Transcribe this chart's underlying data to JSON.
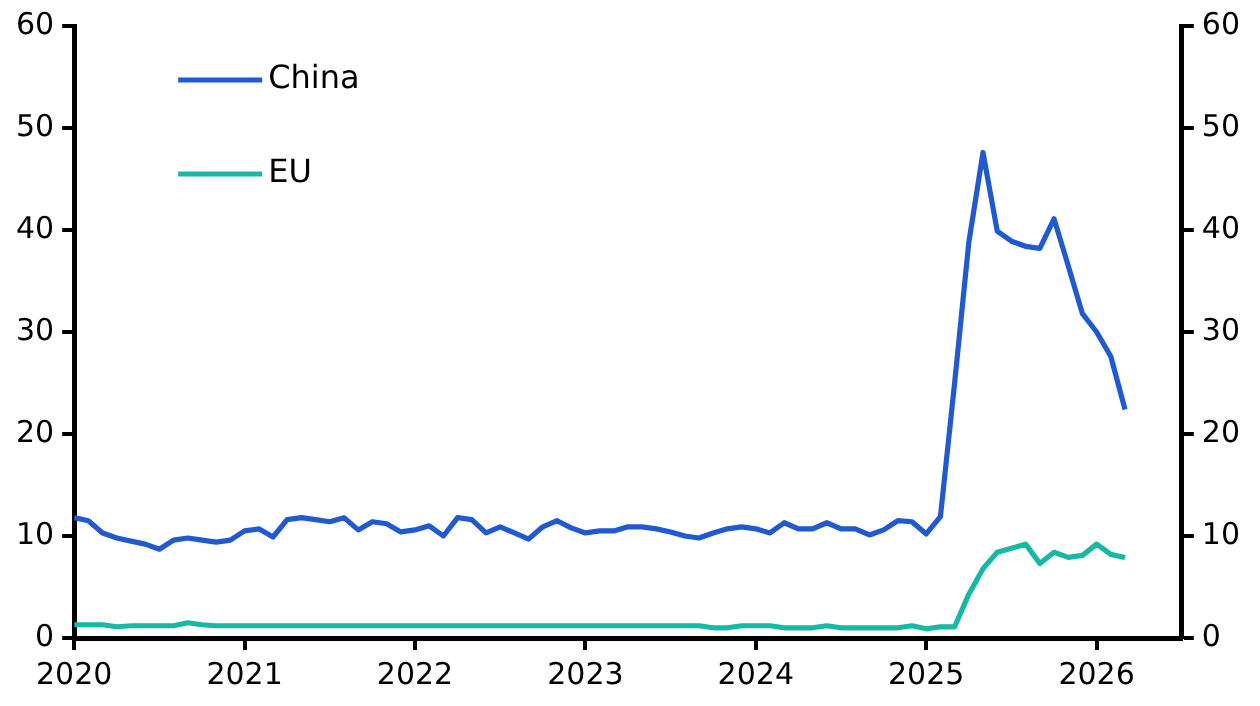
{
  "chart_data": {
    "type": "line",
    "x": [
      "2020-01",
      "2020-02",
      "2020-03",
      "2020-04",
      "2020-05",
      "2020-06",
      "2020-07",
      "2020-08",
      "2020-09",
      "2020-10",
      "2020-11",
      "2020-12",
      "2021-01",
      "2021-02",
      "2021-03",
      "2021-04",
      "2021-05",
      "2021-06",
      "2021-07",
      "2021-08",
      "2021-09",
      "2021-10",
      "2021-11",
      "2021-12",
      "2022-01",
      "2022-02",
      "2022-03",
      "2022-04",
      "2022-05",
      "2022-06",
      "2022-07",
      "2022-08",
      "2022-09",
      "2022-10",
      "2022-11",
      "2022-12",
      "2023-01",
      "2023-02",
      "2023-03",
      "2023-04",
      "2023-05",
      "2023-06",
      "2023-07",
      "2023-08",
      "2023-09",
      "2023-10",
      "2023-11",
      "2023-12",
      "2024-01",
      "2024-02",
      "2024-03",
      "2024-04",
      "2024-05",
      "2024-06",
      "2024-07",
      "2024-08",
      "2024-09",
      "2024-10",
      "2024-11",
      "2024-12",
      "2025-01",
      "2025-02",
      "2025-03",
      "2025-04",
      "2025-05",
      "2025-06",
      "2025-07",
      "2025-08",
      "2025-09",
      "2025-10",
      "2025-11",
      "2025-12",
      "2026-01",
      "2026-02",
      "2026-03"
    ],
    "series": [
      {
        "name": "China",
        "color": "#2159d1",
        "values": [
          11.8,
          11.5,
          10.3,
          9.8,
          9.5,
          9.2,
          8.7,
          9.6,
          9.8,
          9.6,
          9.4,
          9.6,
          10.5,
          10.7,
          9.9,
          11.6,
          11.8,
          11.6,
          11.4,
          11.8,
          10.6,
          11.4,
          11.2,
          10.4,
          10.6,
          11.0,
          10.0,
          11.8,
          11.6,
          10.3,
          10.9,
          10.3,
          9.7,
          10.9,
          11.5,
          10.8,
          10.3,
          10.5,
          10.5,
          10.9,
          10.9,
          10.7,
          10.4,
          10.0,
          9.8,
          10.3,
          10.7,
          10.9,
          10.7,
          10.3,
          11.3,
          10.7,
          10.7,
          11.3,
          10.7,
          10.7,
          10.1,
          10.6,
          11.5,
          11.4,
          10.2,
          11.9,
          25,
          38.8,
          47.6,
          39.9,
          38.9,
          38.4,
          38.2,
          41.1,
          36.5,
          31.8,
          30.0,
          27.6,
          22.4
        ]
      },
      {
        "name": "EU",
        "color": "#17b8a4",
        "values": [
          1.3,
          1.3,
          1.3,
          1.1,
          1.2,
          1.2,
          1.2,
          1.2,
          1.5,
          1.3,
          1.2,
          1.2,
          1.2,
          1.2,
          1.2,
          1.2,
          1.2,
          1.2,
          1.2,
          1.2,
          1.2,
          1.2,
          1.2,
          1.2,
          1.2,
          1.2,
          1.2,
          1.2,
          1.2,
          1.2,
          1.2,
          1.2,
          1.2,
          1.2,
          1.2,
          1.2,
          1.2,
          1.2,
          1.2,
          1.2,
          1.2,
          1.2,
          1.2,
          1.2,
          1.2,
          1.0,
          1.0,
          1.2,
          1.2,
          1.2,
          1.0,
          1.0,
          1.0,
          1.2,
          1.0,
          1.0,
          1.0,
          1.0,
          1.0,
          1.2,
          0.9,
          1.1,
          1.1,
          4.3,
          6.8,
          8.4,
          8.8,
          9.2,
          7.3,
          8.4,
          7.9,
          8.1,
          9.2,
          8.2,
          7.9
        ]
      }
    ],
    "xlim": [
      "2020-01",
      "2026-07"
    ],
    "xticks": [
      {
        "value": "2020-01",
        "label": "2020"
      },
      {
        "value": "2021-01",
        "label": "2021"
      },
      {
        "value": "2022-01",
        "label": "2022"
      },
      {
        "value": "2023-01",
        "label": "2023"
      },
      {
        "value": "2024-01",
        "label": "2024"
      },
      {
        "value": "2025-01",
        "label": "2025"
      },
      {
        "value": "2026-01",
        "label": "2026"
      }
    ],
    "ylim": [
      0,
      60
    ],
    "yticks": [
      0,
      10,
      20,
      30,
      40,
      50,
      60
    ],
    "y2lim": [
      0,
      60
    ],
    "y2ticks": [
      0,
      10,
      20,
      30,
      40,
      50,
      60
    ],
    "legend": "top left",
    "grid": false,
    "marker": "none",
    "line_style": "solid"
  }
}
